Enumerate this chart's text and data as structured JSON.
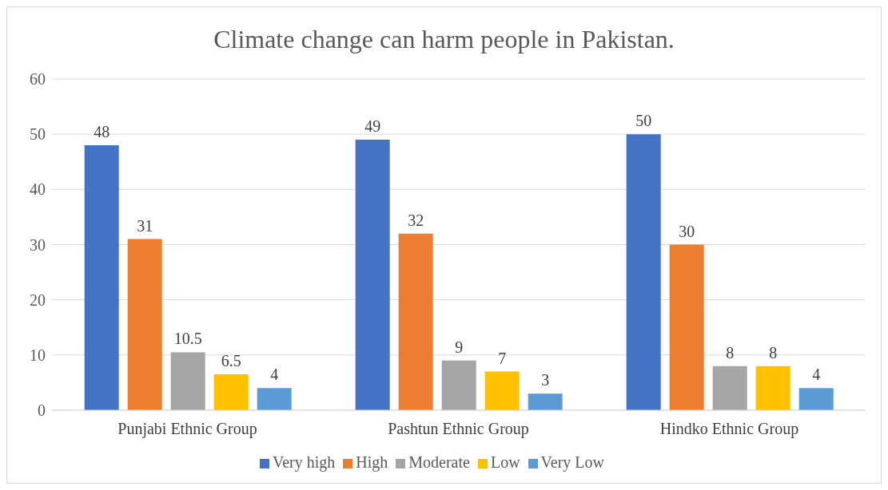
{
  "chart_data": {
    "type": "bar",
    "title": "Climate change can harm people in Pakistan.",
    "categories": [
      "Punjabi Ethnic Group",
      "Pashtun Ethnic Group",
      "Hindko Ethnic Group"
    ],
    "series": [
      {
        "name": "Very high",
        "color": "#4472c4",
        "values": [
          48,
          49,
          50
        ]
      },
      {
        "name": "High",
        "color": "#ed7d31",
        "values": [
          31,
          32,
          30
        ]
      },
      {
        "name": "Moderate",
        "color": "#a5a5a5",
        "values": [
          10.5,
          9,
          8
        ]
      },
      {
        "name": "Low",
        "color": "#ffc000",
        "values": [
          6.5,
          7,
          8
        ]
      },
      {
        "name": "Very Low",
        "color": "#5b9bd5",
        "values": [
          4,
          3,
          4
        ]
      }
    ],
    "ylim": [
      0,
      60
    ],
    "yticks": [
      0,
      10,
      20,
      30,
      40,
      50,
      60
    ],
    "grid": "y",
    "legend": "bottom",
    "data_labels": true
  }
}
